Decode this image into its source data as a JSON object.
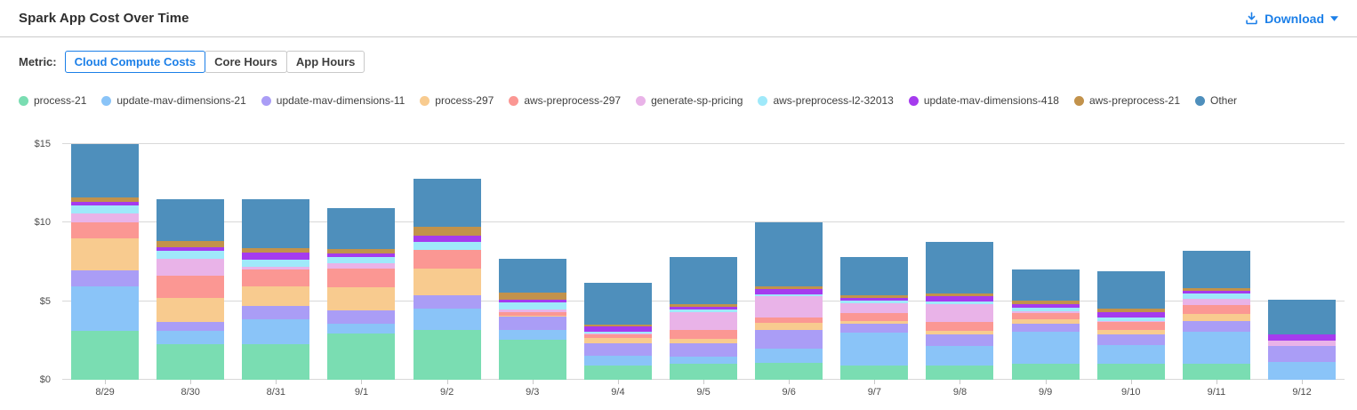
{
  "header": {
    "title": "Spark App Cost Over Time",
    "download_label": "Download"
  },
  "metric": {
    "label": "Metric:",
    "options": [
      {
        "label": "Cloud Compute Costs",
        "selected": true
      },
      {
        "label": "Core Hours",
        "selected": false
      },
      {
        "label": "App Hours",
        "selected": false
      }
    ]
  },
  "colors": {
    "accent_blue": "#1b7fe8",
    "grid": "#d8d8d8",
    "axis_text": "#4d4d4d"
  },
  "chart_data": {
    "type": "bar",
    "stacked": true,
    "grid": true,
    "legend_position": "top",
    "ylim": [
      0,
      15
    ],
    "yticks": [
      0,
      5,
      10,
      15
    ],
    "ytick_labels": [
      "$0",
      "$5",
      "$10",
      "$15"
    ],
    "categories": [
      "8/29",
      "8/30",
      "8/31",
      "9/1",
      "9/2",
      "9/3",
      "9/4",
      "9/5",
      "9/6",
      "9/7",
      "9/8",
      "9/9",
      "9/10",
      "9/11",
      "9/12"
    ],
    "series": [
      {
        "name": "process-21",
        "color": "#7addb2",
        "values": [
          3.1,
          2.25,
          2.25,
          2.95,
          3.15,
          2.55,
          0.9,
          1.0,
          1.1,
          0.9,
          0.9,
          1.0,
          1.0,
          1.0,
          0
        ]
      },
      {
        "name": "update-mav-dimensions-21",
        "color": "#8ac4f8",
        "values": [
          2.85,
          0.85,
          1.6,
          0.6,
          1.4,
          0.6,
          0.65,
          0.45,
          0.9,
          2.1,
          1.25,
          2.05,
          1.2,
          2.05,
          1.13
        ]
      },
      {
        "name": "update-mav-dimensions-11",
        "color": "#aa9df6",
        "values": [
          1.0,
          0.6,
          0.85,
          0.85,
          0.85,
          0.85,
          0.8,
          0.85,
          1.2,
          0.57,
          0.75,
          0.5,
          0.68,
          0.68,
          1.0
        ]
      },
      {
        "name": "process-297",
        "color": "#f8cb8f",
        "values": [
          2.05,
          1.5,
          1.25,
          1.5,
          1.65,
          0.1,
          0.31,
          0.3,
          0.4,
          0.17,
          0.23,
          0.28,
          0.28,
          0.45,
          0
        ]
      },
      {
        "name": "aws-preprocess-297",
        "color": "#fb9793",
        "values": [
          1.0,
          1.4,
          1.05,
          1.2,
          1.2,
          0.2,
          0.23,
          0.55,
          0.35,
          0.5,
          0.57,
          0.4,
          0.5,
          0.57,
          0
        ]
      },
      {
        "name": "generate-sp-pricing",
        "color": "#e9b3e8",
        "values": [
          0.6,
          1.1,
          0.2,
          0.3,
          0,
          0.15,
          0.08,
          1.15,
          1.4,
          0.62,
          1.13,
          0.12,
          0.1,
          0.4,
          0.34
        ]
      },
      {
        "name": "aws-preprocess-l2-32013",
        "color": "#9fe9fa",
        "values": [
          0.5,
          0.5,
          0.45,
          0.4,
          0.5,
          0.45,
          0.11,
          0.17,
          0.1,
          0.17,
          0.17,
          0.23,
          0.23,
          0.34,
          0
        ]
      },
      {
        "name": "update-mav-dimensions-418",
        "color": "#a53bee",
        "values": [
          0.2,
          0.25,
          0.45,
          0.25,
          0.45,
          0.2,
          0.31,
          0.17,
          0.35,
          0.17,
          0.34,
          0.23,
          0.34,
          0.17,
          0.4
        ]
      },
      {
        "name": "aws-preprocess-21",
        "color": "#c2924b",
        "values": [
          0.3,
          0.4,
          0.27,
          0.27,
          0.55,
          0.45,
          0.11,
          0.17,
          0.17,
          0.17,
          0.17,
          0.23,
          0.23,
          0.17,
          0
        ]
      },
      {
        "name": "Other",
        "color": "#4e8fbc",
        "values": [
          3.4,
          2.65,
          3.13,
          2.58,
          3.05,
          2.15,
          2.7,
          2.99,
          4.03,
          2.43,
          3.29,
          2.01,
          2.34,
          2.37,
          2.23
        ]
      }
    ]
  }
}
